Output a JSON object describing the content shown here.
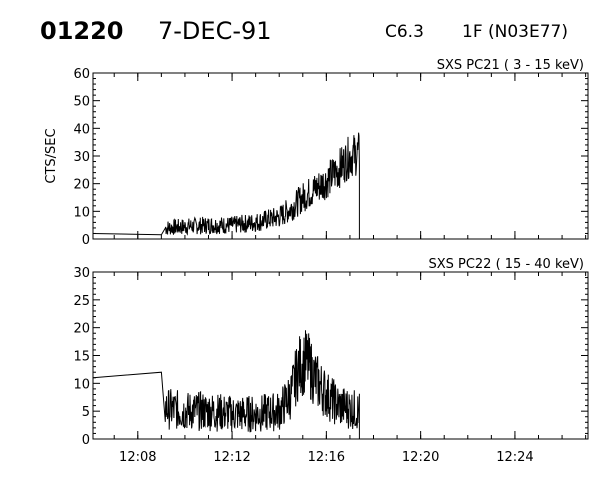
{
  "header": {
    "event_id": "01220",
    "date": "7-DEC-91",
    "goes_class": "C6.3",
    "optical": "1F (N03E77)"
  },
  "chart_data": [
    {
      "type": "line",
      "title": "SXS PC21  (  3 - 15 keV)",
      "ylabel": "CTS/SEC",
      "xlabel": "",
      "ylim": [
        0,
        60
      ],
      "yticks": [
        0,
        10,
        20,
        30,
        40,
        50,
        60
      ],
      "xlim": [
        "12:06:06",
        "12:27:06"
      ],
      "x_tick_labels": [
        "12:08",
        "12:12",
        "12:16",
        "12:20",
        "12:24"
      ],
      "series": [
        {
          "values": [
            [
              "12:06:06",
              2
            ],
            [
              "12:09:00",
              1.5
            ],
            [
              "12:09:10",
              4
            ],
            [
              "12:10:00",
              4.5
            ],
            [
              "12:11:00",
              5
            ],
            [
              "12:12:00",
              5
            ],
            [
              "12:13:00",
              6
            ],
            [
              "12:14:00",
              8
            ],
            [
              "12:14:30",
              11
            ],
            [
              "12:15:00",
              15
            ],
            [
              "12:15:30",
              18
            ],
            [
              "12:16:00",
              21
            ],
            [
              "12:16:30",
              25
            ],
            [
              "12:17:00",
              30
            ],
            [
              "12:17:24",
              31
            ]
          ]
        }
      ]
    },
    {
      "type": "line",
      "title": "SXS PC22  ( 15 - 40 keV)",
      "ylabel": "",
      "xlabel": "",
      "ylim": [
        0,
        30
      ],
      "yticks": [
        0,
        5,
        10,
        15,
        20,
        25,
        30
      ],
      "xlim": [
        "12:06:06",
        "12:27:06"
      ],
      "x_tick_labels": [
        "12:08",
        "12:12",
        "12:16",
        "12:20",
        "12:24"
      ],
      "series": [
        {
          "values": [
            [
              "12:06:06",
              11
            ],
            [
              "12:09:00",
              12
            ],
            [
              "12:09:10",
              5.5
            ],
            [
              "12:10:00",
              5
            ],
            [
              "12:11:00",
              5
            ],
            [
              "12:12:00",
              4.5
            ],
            [
              "12:13:00",
              4.5
            ],
            [
              "12:14:00",
              5
            ],
            [
              "12:14:30",
              8
            ],
            [
              "12:14:50",
              13
            ],
            [
              "12:15:10",
              14
            ],
            [
              "12:15:30",
              11
            ],
            [
              "12:16:00",
              8
            ],
            [
              "12:16:30",
              6
            ],
            [
              "12:17:00",
              5.5
            ],
            [
              "12:17:24",
              5
            ]
          ]
        }
      ]
    }
  ]
}
